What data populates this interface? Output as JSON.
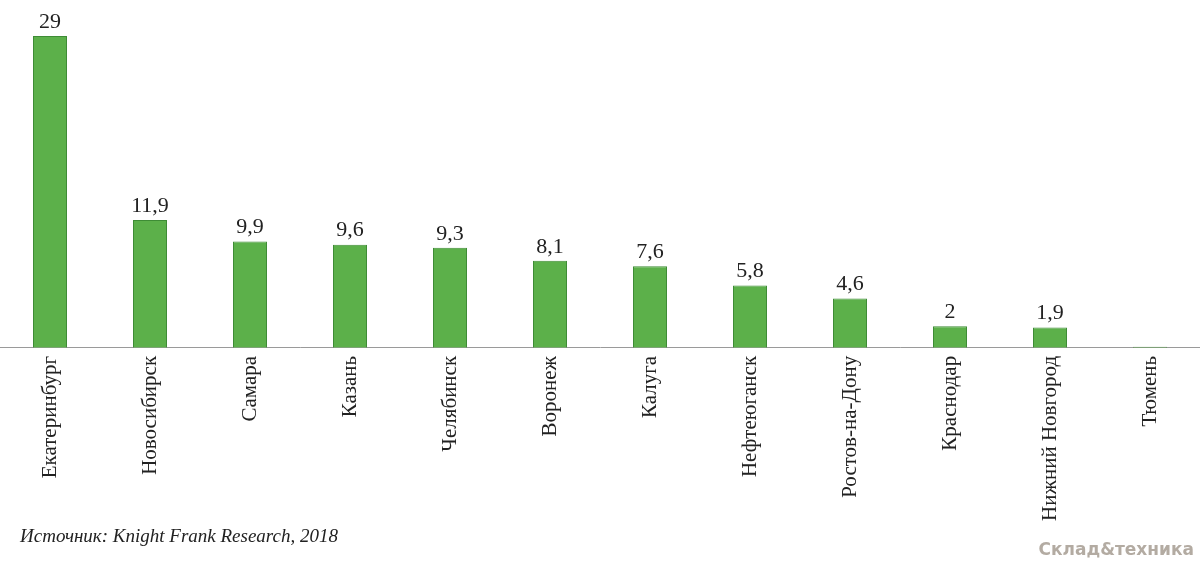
{
  "chart_data": {
    "type": "bar",
    "categories": [
      "Екатеринбург",
      "Новосибирск",
      "Самара",
      "Казань",
      "Челябинск",
      "Воронеж",
      "Калуга",
      "Нефтеюганск",
      "Ростов-на-Дону",
      "Краснодар",
      "Нижний Новгород",
      "Тюмень"
    ],
    "values": [
      29,
      11.9,
      9.9,
      9.6,
      9.3,
      8.1,
      7.6,
      5.8,
      4.6,
      2,
      1.9,
      0.1
    ],
    "value_labels": [
      "29",
      "11,9",
      "9,9",
      "9,6",
      "9,3",
      "8,1",
      "7,6",
      "5,8",
      "4,6",
      "2",
      "1,9",
      null
    ],
    "data_labels": true,
    "color": "#5cb04a",
    "ylim": [
      0,
      29
    ],
    "grid": false,
    "tick_labels": "x",
    "annotations": [
      "Источник: Knight Frank Research, 2018",
      "Склад&техника"
    ]
  }
}
